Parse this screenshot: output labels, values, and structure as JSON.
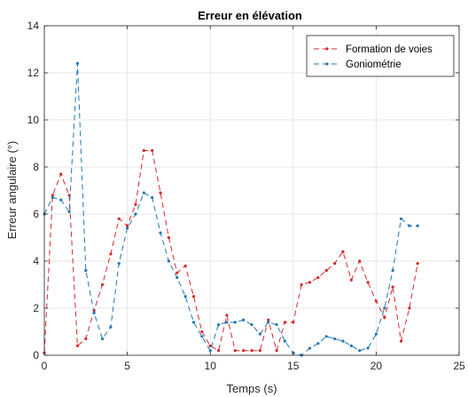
{
  "chart_data": {
    "type": "line",
    "title": "Erreur en élévation",
    "xlabel": "Temps (s)",
    "ylabel": "Erreur angulaire (°)",
    "xlim": [
      0,
      25
    ],
    "ylim": [
      0,
      14
    ],
    "xticks": [
      0,
      5,
      10,
      15,
      20,
      25
    ],
    "yticks": [
      0,
      2,
      4,
      6,
      8,
      10,
      12,
      14
    ],
    "grid": true,
    "legend_position": "top-right",
    "series": [
      {
        "name": "Formation de voies",
        "color": "#d62728",
        "linestyle": "dashed",
        "marker": "dot",
        "points": [
          [
            0.0,
            0.1
          ],
          [
            0.5,
            6.8
          ],
          [
            1.0,
            7.7
          ],
          [
            1.5,
            6.8
          ],
          [
            2.0,
            0.4
          ],
          [
            2.5,
            0.7
          ],
          [
            3.0,
            1.9
          ],
          [
            3.5,
            3.0
          ],
          [
            4.0,
            4.3
          ],
          [
            4.5,
            5.8
          ],
          [
            5.0,
            5.5
          ],
          [
            5.5,
            6.4
          ],
          [
            6.0,
            8.7
          ],
          [
            6.5,
            8.7
          ],
          [
            7.0,
            6.9
          ],
          [
            7.5,
            5.0
          ],
          [
            8.0,
            3.5
          ],
          [
            8.5,
            3.8
          ],
          [
            9.0,
            2.5
          ],
          [
            9.5,
            1.0
          ],
          [
            10.0,
            0.4
          ],
          [
            10.5,
            0.2
          ],
          [
            11.0,
            1.7
          ],
          [
            11.5,
            0.2
          ],
          [
            12.0,
            0.2
          ],
          [
            12.5,
            0.2
          ],
          [
            13.0,
            0.2
          ],
          [
            13.5,
            1.5
          ],
          [
            14.0,
            0.2
          ],
          [
            14.5,
            1.4
          ],
          [
            15.0,
            1.4
          ],
          [
            15.5,
            3.0
          ],
          [
            16.0,
            3.1
          ],
          [
            16.5,
            3.3
          ],
          [
            17.0,
            3.6
          ],
          [
            17.5,
            3.9
          ],
          [
            18.0,
            4.4
          ],
          [
            18.5,
            3.2
          ],
          [
            19.0,
            4.0
          ],
          [
            19.5,
            3.1
          ],
          [
            20.0,
            2.3
          ],
          [
            20.5,
            1.6
          ],
          [
            21.0,
            2.9
          ],
          [
            21.5,
            0.6
          ],
          [
            22.0,
            2.0
          ],
          [
            22.5,
            3.9
          ]
        ]
      },
      {
        "name": "Goniométrie",
        "color": "#1f77b4",
        "linestyle": "dashed",
        "marker": "dot",
        "points": [
          [
            0.0,
            6.0
          ],
          [
            0.5,
            6.7
          ],
          [
            1.0,
            6.6
          ],
          [
            1.5,
            6.1
          ],
          [
            2.0,
            12.4
          ],
          [
            2.5,
            3.6
          ],
          [
            3.0,
            1.8
          ],
          [
            3.5,
            0.7
          ],
          [
            4.0,
            1.2
          ],
          [
            4.5,
            3.9
          ],
          [
            5.0,
            5.4
          ],
          [
            5.5,
            6.0
          ],
          [
            6.0,
            6.9
          ],
          [
            6.5,
            6.7
          ],
          [
            7.0,
            5.2
          ],
          [
            7.5,
            4.0
          ],
          [
            8.0,
            3.3
          ],
          [
            8.5,
            2.5
          ],
          [
            9.0,
            1.4
          ],
          [
            9.5,
            0.8
          ],
          [
            10.0,
            0.2
          ],
          [
            10.5,
            1.3
          ],
          [
            11.0,
            1.4
          ],
          [
            11.5,
            1.4
          ],
          [
            12.0,
            1.5
          ],
          [
            12.5,
            1.3
          ],
          [
            13.0,
            0.9
          ],
          [
            13.5,
            1.4
          ],
          [
            14.0,
            1.3
          ],
          [
            14.5,
            0.6
          ],
          [
            15.0,
            0.1
          ],
          [
            15.5,
            0.0
          ],
          [
            16.0,
            0.3
          ],
          [
            16.5,
            0.5
          ],
          [
            17.0,
            0.8
          ],
          [
            17.5,
            0.7
          ],
          [
            18.0,
            0.6
          ],
          [
            18.5,
            0.4
          ],
          [
            19.0,
            0.2
          ],
          [
            19.5,
            0.3
          ],
          [
            20.0,
            0.9
          ],
          [
            20.5,
            2.0
          ],
          [
            21.0,
            3.6
          ],
          [
            21.5,
            5.8
          ],
          [
            22.0,
            5.5
          ],
          [
            22.5,
            5.5
          ]
        ]
      }
    ]
  }
}
